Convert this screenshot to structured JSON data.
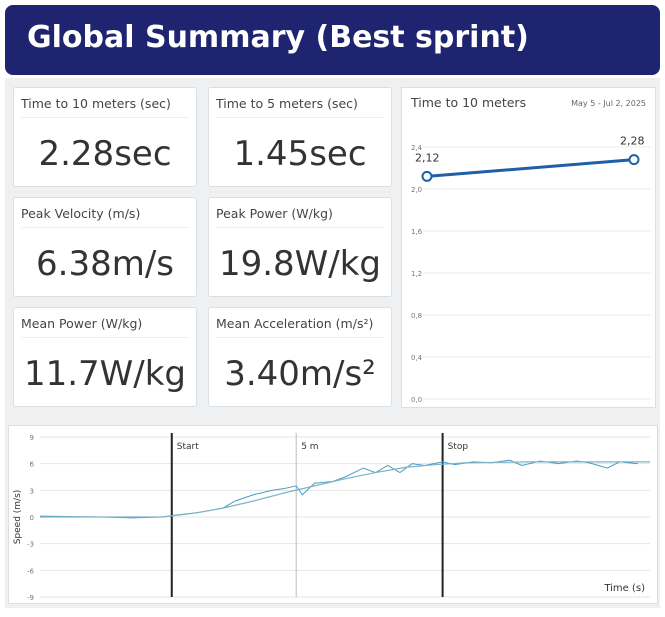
{
  "header": {
    "title": "Global Summary (Best sprint)"
  },
  "cards": [
    {
      "label": "Time to 10 meters (sec)",
      "value": "2.28sec"
    },
    {
      "label": "Time to 5 meters (sec)",
      "value": "1.45sec"
    },
    {
      "label": "Peak Velocity (m/s)",
      "value": "6.38m/s"
    },
    {
      "label": "Peak Power (W/kg)",
      "value": "19.8W/kg"
    },
    {
      "label": "Mean Power (W/kg)",
      "value": "11.7W/kg"
    },
    {
      "label": "Mean Acceleration (m/s²)",
      "value": "3.40m/s²"
    }
  ],
  "chart_data": [
    {
      "type": "line",
      "title": "Time to 10 meters",
      "subtitle": "May 5 - Jul 2, 2025",
      "categories": [
        null,
        null
      ],
      "series": [
        {
          "color": "#1f5fa8",
          "values": [
            2.12,
            2.28
          ],
          "value_labels": [
            "2,12",
            "2,28"
          ]
        }
      ],
      "ylim": [
        0,
        2.4
      ],
      "yticks": [
        {
          "value": 0,
          "label": "0,0"
        },
        {
          "value": 0.4,
          "label": "0,4"
        },
        {
          "value": 0.8,
          "label": "0,8"
        },
        {
          "value": 1.2,
          "label": "1,2"
        },
        {
          "value": 1.6,
          "label": "1,6"
        },
        {
          "value": 2.0,
          "label": "2,0"
        },
        {
          "value": 2.4,
          "label": "2,4"
        }
      ],
      "grid": true
    },
    {
      "type": "line",
      "ylabel": "Speed (m/s)",
      "xlabel": "Time (s)",
      "xlim": [
        0,
        10
      ],
      "ylim": [
        -9,
        9
      ],
      "yticks": [
        -9,
        -6,
        -3,
        0,
        3,
        6,
        9
      ],
      "grid": true,
      "annotations": [
        {
          "text": "Start",
          "x": 2.16
        },
        {
          "text": "5 m",
          "x": 4.2
        },
        {
          "text": "Stop",
          "x": 6.6
        }
      ],
      "series": [
        {
          "color": "#4a9bc4",
          "x": [
            0,
            1,
            1.5,
            2,
            2.2,
            2.6,
            3,
            3.2,
            3.5,
            3.8,
            4,
            4.2,
            4.3,
            4.5,
            4.8,
            5,
            5.3,
            5.5,
            5.7,
            5.9,
            6.1,
            6.3,
            6.6,
            6.8,
            7.1,
            7.4,
            7.7,
            7.9,
            8.2,
            8.5,
            8.8,
            9,
            9.3,
            9.5,
            9.8
          ],
          "values": [
            0.1,
            0,
            -0.1,
            0,
            0.2,
            0.5,
            1,
            1.8,
            2.5,
            3,
            3.2,
            3.5,
            2.5,
            3.8,
            4,
            4.5,
            5.5,
            5,
            5.8,
            5,
            6,
            5.8,
            6.2,
            5.9,
            6.2,
            6.1,
            6.4,
            5.8,
            6.3,
            6,
            6.3,
            6.1,
            5.5,
            6.2,
            6
          ]
        },
        {
          "color": "#7fb3c8",
          "x": [
            0,
            2,
            2.5,
            3,
            3.5,
            4,
            4.5,
            5,
            5.5,
            6,
            6.5,
            7,
            8,
            9,
            10
          ],
          "values": [
            0,
            0,
            0.4,
            1,
            1.8,
            2.7,
            3.5,
            4.3,
            5,
            5.6,
            5.9,
            6.1,
            6.2,
            6.2,
            6.2
          ]
        }
      ]
    }
  ]
}
